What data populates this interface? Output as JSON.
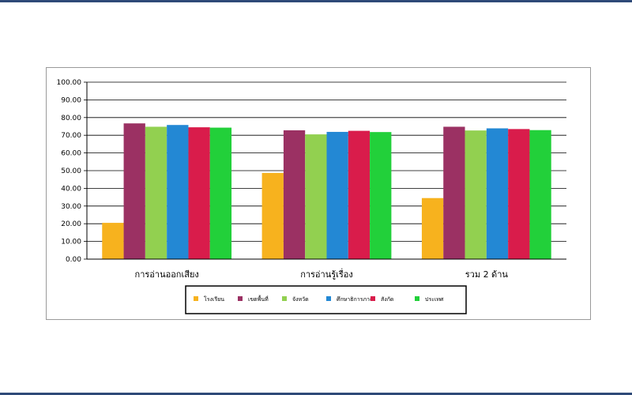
{
  "chart_data": {
    "type": "bar",
    "categories": [
      "การอ่านออกเสียง",
      "การอ่านรู้เรื่อง",
      "รวม 2 ด้าน"
    ],
    "series": [
      {
        "name": "โรงเรียน",
        "color": "#f7b21e",
        "values": [
          20.5,
          48.7,
          34.5
        ]
      },
      {
        "name": "เขตพื้นที่",
        "color": "#9b3163",
        "values": [
          76.7,
          72.8,
          74.8
        ]
      },
      {
        "name": "จังหวัด",
        "color": "#92d050",
        "values": [
          74.8,
          70.5,
          72.7
        ]
      },
      {
        "name": "ศึกษาธิการภาค",
        "color": "#2388d4",
        "values": [
          75.8,
          71.9,
          73.9
        ]
      },
      {
        "name": "สังกัด",
        "color": "#d91c4b",
        "values": [
          74.5,
          72.5,
          73.5
        ]
      },
      {
        "name": "ประเทศ",
        "color": "#22d03a",
        "values": [
          74.3,
          71.8,
          72.9
        ]
      }
    ],
    "ylim": [
      0,
      100
    ],
    "yticks": [
      "0.00",
      "10.00",
      "20.00",
      "30.00",
      "40.00",
      "50.00",
      "60.00",
      "70.00",
      "80.00",
      "90.00",
      "100.00"
    ],
    "grid": true,
    "legend_position": "bottom"
  }
}
